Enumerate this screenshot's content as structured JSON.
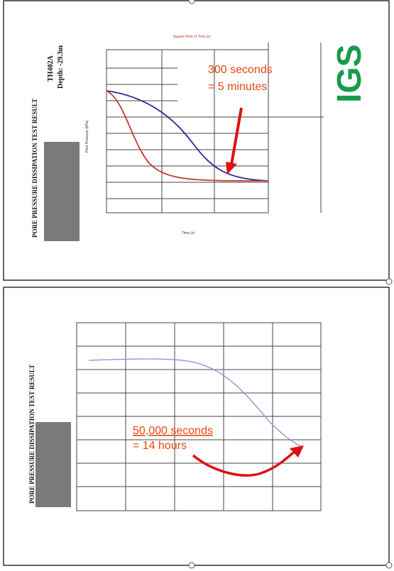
{
  "top_document": {
    "title": "PORE PRESSURE DISSIPATION TEST RESULT",
    "test_id": "TH402A",
    "depth": "Depth: -29.3m",
    "logo": "IGS",
    "top_axis_title": "Square Root of Time (s)",
    "x_axis_title": "Time (s)",
    "y_axis_title": "Pore Pressure (kPa)",
    "annotation": [
      "300 seconds",
      "= 5 minutes"
    ]
  },
  "bottom_document": {
    "title": "PORE PRESSURE DISSIPATION TEST RESULT",
    "annotation": [
      "50,000 seconds",
      "= 14 hours"
    ]
  }
}
